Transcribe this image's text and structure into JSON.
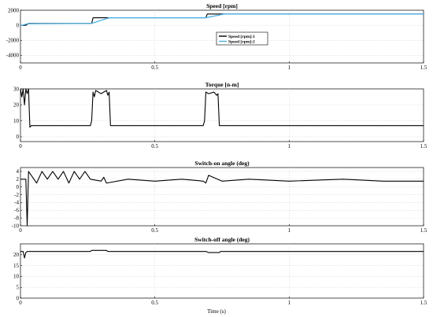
{
  "xlabel": "Time (s)",
  "chart_data": [
    {
      "type": "line",
      "title": "Speed [rpm]",
      "xlim": [
        0,
        1.5
      ],
      "ylim": [
        -5000,
        2000
      ],
      "xticks": [
        0,
        0.5,
        1,
        1.5
      ],
      "xtick_labels": [
        "0",
        "0.5",
        "1",
        "1.5"
      ],
      "yticks": [
        -4000,
        -2000,
        0,
        2000
      ],
      "ytick_labels": [
        "-4000",
        "-2000",
        "0",
        "2000"
      ],
      "grid": true,
      "legend": "center-right",
      "series": [
        {
          "name": "Speed [rpm]:1",
          "color": "#000000",
          "x": [
            0,
            0.02,
            0.03,
            0.265,
            0.27,
            0.33,
            0.69,
            0.695,
            1.5
          ],
          "y": [
            0,
            0,
            250,
            250,
            1000,
            1000,
            1000,
            1500,
            1500
          ]
        },
        {
          "name": "Speed [rpm]:2",
          "color": "#4db3e6",
          "x": [
            0,
            0.025,
            0.265,
            0.33,
            0.69,
            0.76,
            1.5
          ],
          "y": [
            -50,
            200,
            250,
            1000,
            1000,
            1500,
            1500
          ]
        }
      ]
    },
    {
      "type": "line",
      "title": "Torque [n-m]",
      "xlim": [
        0,
        1.5
      ],
      "ylim": [
        -3,
        30
      ],
      "xticks": [
        0,
        0.5,
        1,
        1.5
      ],
      "xtick_labels": [
        "0",
        "0.5",
        "1",
        "1.5"
      ],
      "yticks": [
        0,
        10,
        20,
        30
      ],
      "ytick_labels": [
        "0",
        "10",
        "20",
        "30"
      ],
      "grid": true,
      "series": [
        {
          "color": "#000000",
          "x": [
            0,
            0.005,
            0.01,
            0.015,
            0.02,
            0.025,
            0.03,
            0.035,
            0.04,
            0.26,
            0.265,
            0.27,
            0.275,
            0.28,
            0.3,
            0.32,
            0.325,
            0.33,
            0.335,
            0.68,
            0.685,
            0.69,
            0.7,
            0.72,
            0.73,
            0.735,
            0.74,
            1.5
          ],
          "y": [
            30,
            25,
            30,
            20,
            30,
            27,
            30,
            6,
            7,
            7,
            10,
            28,
            25,
            29,
            27,
            29,
            26,
            28,
            7,
            7,
            10,
            28,
            27,
            28,
            26,
            27,
            7,
            7
          ]
        }
      ]
    },
    {
      "type": "line",
      "title": "Switch-on angle (deg)",
      "xlim": [
        0,
        1.5
      ],
      "ylim": [
        -10,
        5
      ],
      "xticks": [
        0,
        0.5,
        1,
        1.5
      ],
      "xtick_labels": [
        "0",
        "0.5",
        "1",
        "1.5"
      ],
      "yticks": [
        -10,
        -8,
        -6,
        -4,
        -2,
        0,
        2,
        4
      ],
      "ytick_labels": [
        "-10",
        "-8",
        "-6",
        "-4",
        "-2",
        "0",
        "2",
        "4"
      ],
      "grid": true,
      "series": [
        {
          "color": "#000000",
          "x": [
            0,
            0.01,
            0.02,
            0.025,
            0.03,
            0.04,
            0.06,
            0.08,
            0.1,
            0.12,
            0.14,
            0.16,
            0.18,
            0.2,
            0.22,
            0.24,
            0.26,
            0.3,
            0.31,
            0.32,
            0.4,
            0.5,
            0.6,
            0.68,
            0.69,
            0.7,
            0.75,
            0.85,
            1.0,
            1.2,
            1.35,
            1.5
          ],
          "y": [
            2,
            2,
            2,
            -10,
            4,
            3,
            1,
            4,
            2,
            4,
            2,
            4,
            1,
            4,
            2,
            4,
            2,
            1.5,
            2.5,
            1,
            2,
            1.5,
            2,
            1.5,
            1,
            3,
            1.5,
            2,
            1.5,
            2,
            1.5,
            1.5
          ]
        }
      ]
    },
    {
      "type": "line",
      "title": "Switch-off angle (deg)",
      "xlim": [
        0,
        1.5
      ],
      "ylim": [
        0,
        25
      ],
      "xticks": [
        0,
        0.5,
        1,
        1.5
      ],
      "xtick_labels": [
        "0",
        "0.5",
        "1",
        "1.5"
      ],
      "yticks": [
        0,
        5,
        10,
        15,
        20
      ],
      "ytick_labels": [
        "0",
        "5",
        "10",
        "15",
        "20"
      ],
      "grid": true,
      "series": [
        {
          "color": "#000000",
          "x": [
            0,
            0.01,
            0.015,
            0.02,
            0.025,
            0.03,
            0.26,
            0.265,
            0.32,
            0.325,
            0.69,
            0.7,
            0.74,
            0.745,
            1.5
          ],
          "y": [
            21.5,
            21.5,
            18.5,
            21,
            21.5,
            21.5,
            21.5,
            22,
            22,
            21.5,
            21.5,
            21,
            21,
            21.5,
            21.5
          ]
        }
      ]
    }
  ]
}
